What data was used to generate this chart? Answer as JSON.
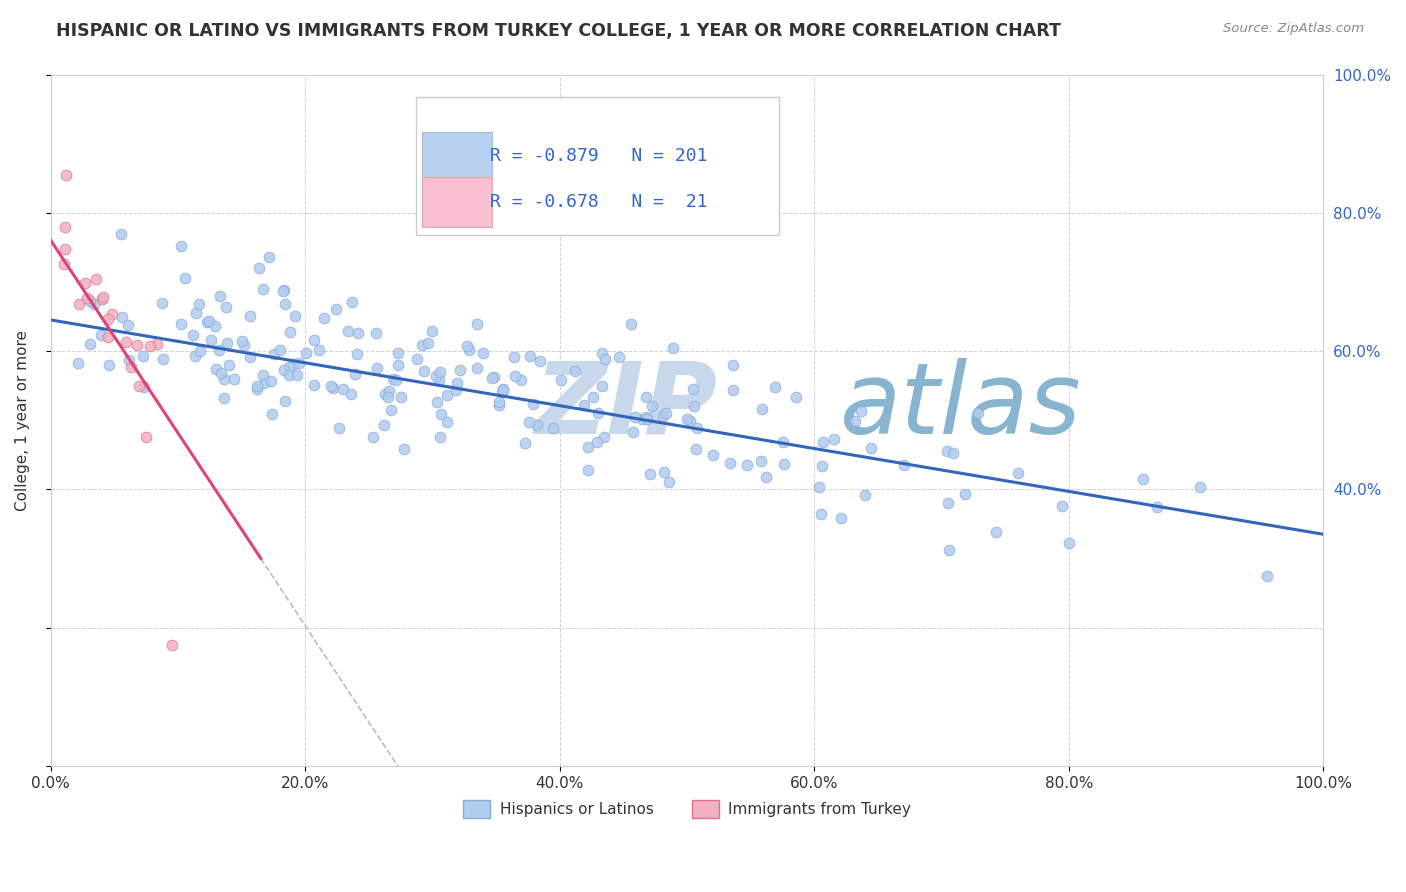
{
  "title": "HISPANIC OR LATINO VS IMMIGRANTS FROM TURKEY COLLEGE, 1 YEAR OR MORE CORRELATION CHART",
  "source": "Source: ZipAtlas.com",
  "ylabel": "College, 1 year or more",
  "xlim": [
    0.0,
    1.0
  ],
  "ylim": [
    0.0,
    1.0
  ],
  "background_color": "#ffffff",
  "grid_color": "#cccccc",
  "watermark_zip": "ZIP",
  "watermark_atlas": "atlas",
  "watermark_color_zip": "#c8d8e8",
  "watermark_color_atlas": "#8cb4d0",
  "series": [
    {
      "name": "Hispanics or Latinos",
      "R": -0.879,
      "N": 201,
      "dot_color": "#b0ccee",
      "dot_edge_color": "#88aad8",
      "line_color": "#3366bb",
      "line_y_start": 0.645,
      "line_y_end": 0.335
    },
    {
      "name": "Immigrants from Turkey",
      "R": -0.678,
      "N": 21,
      "dot_color": "#f0b0c0",
      "dot_edge_color": "#e07090",
      "line_color": "#dd4477",
      "line_y_start": 0.76,
      "line_y_end": 0.3,
      "line_x_end": 0.165
    }
  ],
  "legend_box_colors": [
    "#b8d0f0",
    "#f8c0d0"
  ],
  "legend_text_color": "#3366cc",
  "legend_r_values": [
    "-0.879",
    "-0.678"
  ],
  "legend_n_values": [
    "201",
    " 21"
  ],
  "right_tick_labels": [
    "100.0%",
    "80.0%",
    "60.0%",
    "40.0%"
  ],
  "right_tick_color": "#3366cc",
  "bottom_tick_labels": [
    "0.0%",
    "20.0%",
    "40.0%",
    "60.0%",
    "80.0%",
    "100.0%"
  ],
  "bottom_tick_color": "#333333"
}
